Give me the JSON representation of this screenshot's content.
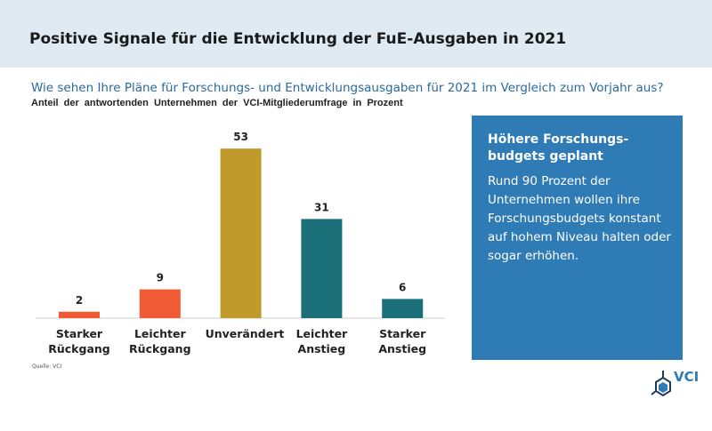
{
  "chart_data": {
    "type": "bar",
    "title": "Positive Signale für die Entwicklung der FuE-Ausgaben in 2021",
    "subtitle": "Wie sehen Ihre Pläne für Forschungs- und Entwicklungsausgaben für 2021 im Vergleich zum Vorjahr aus?",
    "axis_label": "Anteil der antwortenden Unternehmen der VCI-Mitgliederumfrage in Prozent",
    "categories": [
      "Starker Rückgang",
      "Leichter Rückgang",
      "Unverändert",
      "Leichter Anstieg",
      "Starker Anstieg"
    ],
    "values": [
      2,
      9,
      53,
      31,
      6
    ],
    "colors": [
      "#f05a35",
      "#f05a35",
      "#c09a2a",
      "#1b6f79",
      "#1b6f79"
    ],
    "ylim": [
      0,
      55
    ],
    "source": "Quelle: VCI",
    "box": {
      "title": "Höhere Forschungs-budgets geplant",
      "text": "Rund 90 Prozent der Unternehmen wollen ihre Forschungsbudgets konstant auf hohem Niveau halten oder sogar erhöhen."
    },
    "logo": "VCI"
  }
}
